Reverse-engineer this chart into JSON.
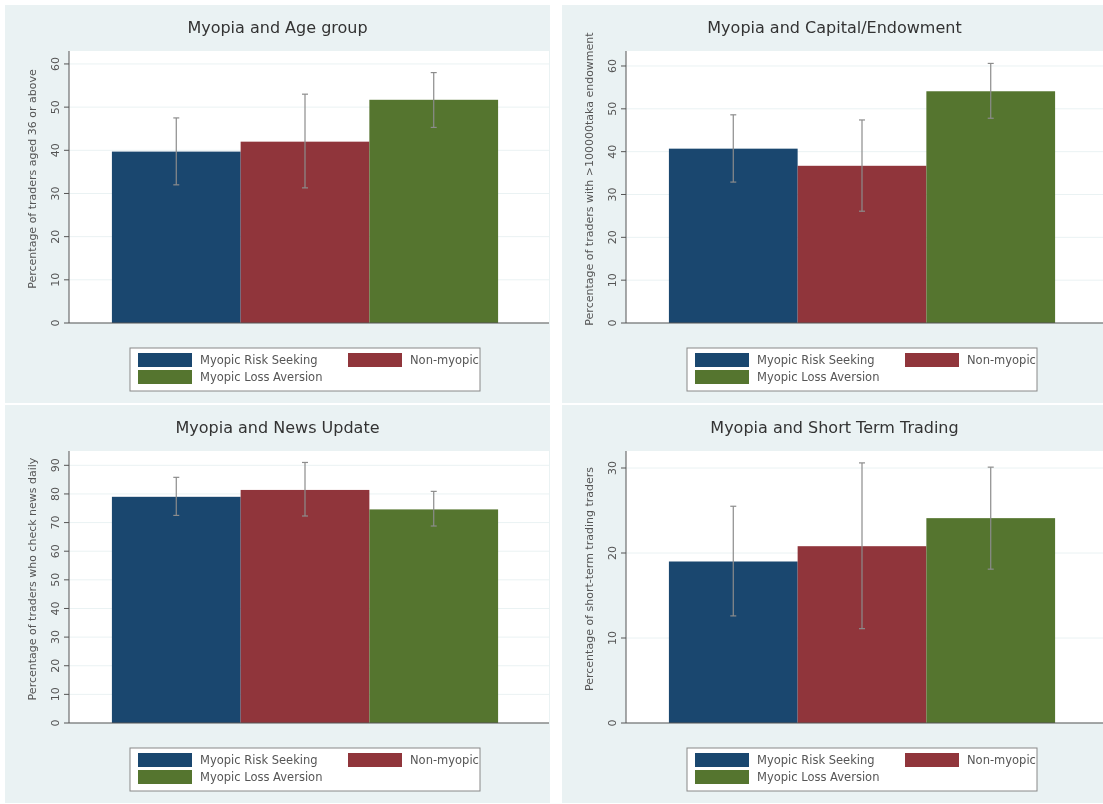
{
  "chart_data": [
    {
      "type": "bar",
      "title": "Myopia and Age group",
      "ylabel": "Percentage of traders aged 36 or above",
      "categories": [
        null
      ],
      "ylim": [
        0,
        63
      ],
      "yticks": [
        0,
        10,
        20,
        30,
        40,
        50,
        60
      ],
      "grid": "y",
      "legend": "bottom",
      "series": [
        {
          "name": "Myopic Risk Seeking",
          "color": "#1a476f",
          "values": [
            39.7
          ],
          "errors": [
            [
              32,
              47.5
            ]
          ]
        },
        {
          "name": "Non-myopic",
          "color": "#90353b",
          "values": [
            42
          ],
          "errors": [
            [
              31.3,
              53
            ]
          ]
        },
        {
          "name": "Myopic Loss Aversion",
          "color": "#55752f",
          "values": [
            51.7
          ],
          "errors": [
            [
              45.3,
              58
            ]
          ]
        }
      ]
    },
    {
      "type": "bar",
      "title": "Myopia and Capital/Endowment",
      "ylabel": "Percentage of traders with >100000taka endowment",
      "categories": [
        null
      ],
      "ylim": [
        0,
        63.5
      ],
      "yticks": [
        0,
        10,
        20,
        30,
        40,
        50,
        60
      ],
      "grid": "y",
      "legend": "bottom",
      "series": [
        {
          "name": "Myopic Risk Seeking",
          "color": "#1a476f",
          "values": [
            40.7
          ],
          "errors": [
            [
              32.9,
              48.6
            ]
          ]
        },
        {
          "name": "Non-myopic",
          "color": "#90353b",
          "values": [
            36.7
          ],
          "errors": [
            [
              26.1,
              47.4
            ]
          ]
        },
        {
          "name": "Myopic Loss Aversion",
          "color": "#55752f",
          "values": [
            54.1
          ],
          "errors": [
            [
              47.8,
              60.6
            ]
          ]
        }
      ]
    },
    {
      "type": "bar",
      "title": "Myopia and News Update",
      "ylabel": "Percentage of traders who check news daily",
      "categories": [
        null
      ],
      "ylim": [
        0,
        95
      ],
      "yticks": [
        0,
        10,
        20,
        30,
        40,
        50,
        60,
        70,
        80,
        90
      ],
      "grid": "y",
      "legend": "bottom",
      "series": [
        {
          "name": "Myopic Risk Seeking",
          "color": "#1a476f",
          "values": [
            79
          ],
          "errors": [
            [
              72.5,
              85.8
            ]
          ]
        },
        {
          "name": "Non-myopic",
          "color": "#90353b",
          "values": [
            81.4
          ],
          "errors": [
            [
              72.3,
              91
            ]
          ]
        },
        {
          "name": "Myopic Loss Aversion",
          "color": "#55752f",
          "values": [
            74.6
          ],
          "errors": [
            [
              68.8,
              80.9
            ]
          ]
        }
      ]
    },
    {
      "type": "bar",
      "title": "Myopia and Short Term Trading",
      "ylabel": "Percentage of short-term trading traders",
      "categories": [
        null
      ],
      "ylim": [
        0,
        32
      ],
      "yticks": [
        0,
        10,
        20,
        30
      ],
      "grid": "y",
      "legend": "bottom",
      "series": [
        {
          "name": "Myopic Risk Seeking",
          "color": "#1a476f",
          "values": [
            19
          ],
          "errors": [
            [
              12.6,
              25.5
            ]
          ]
        },
        {
          "name": "Non-myopic",
          "color": "#90353b",
          "values": [
            20.8
          ],
          "errors": [
            [
              11.1,
              30.6
            ]
          ]
        },
        {
          "name": "Myopic Loss Aversion",
          "color": "#55752f",
          "values": [
            24.1
          ],
          "errors": [
            [
              18.1,
              30.1
            ]
          ]
        }
      ]
    }
  ]
}
